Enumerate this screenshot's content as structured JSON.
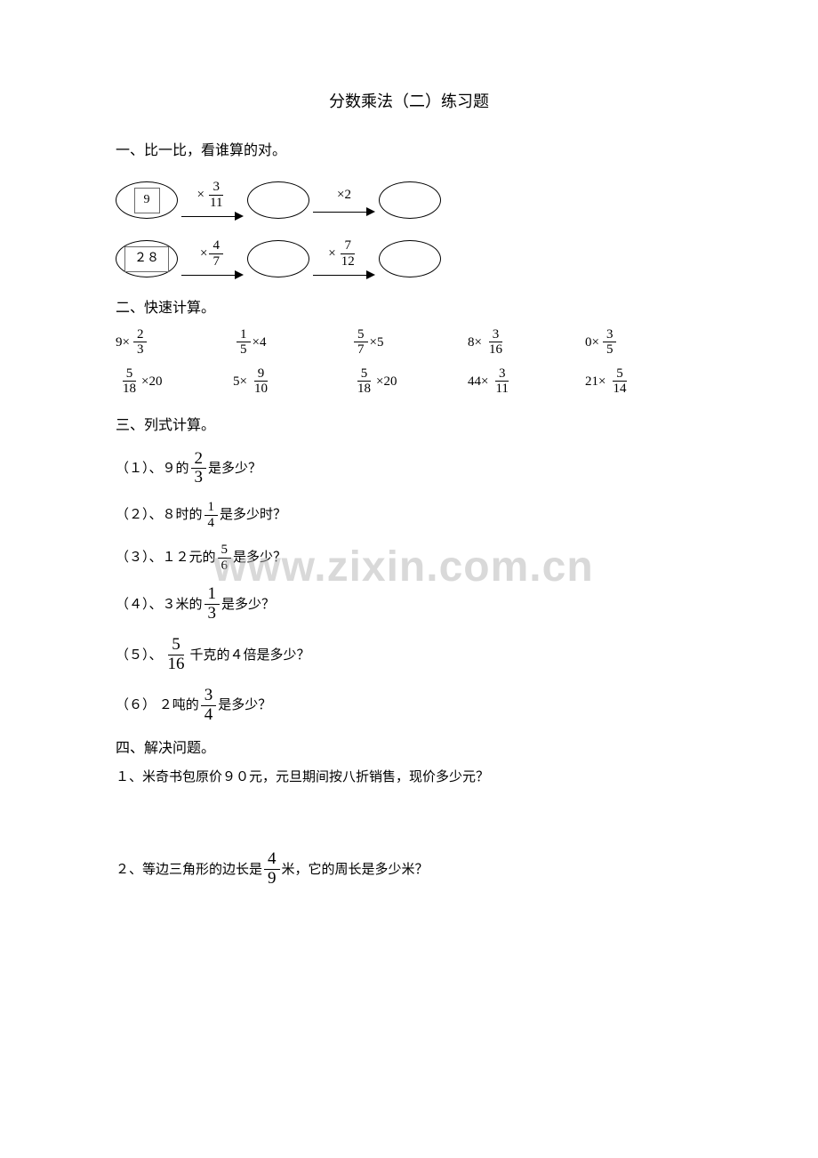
{
  "title": "分数乘法（二）练习题",
  "section1": {
    "header": "一、比一比，看谁算的对。",
    "row1": {
      "start": "9",
      "op1_prefix": "×",
      "op1_num": "3",
      "op1_den": "11",
      "op2": "×2"
    },
    "row2": {
      "start": "２８",
      "op1_prefix": "×",
      "op1_num": "4",
      "op1_den": "7",
      "op2_prefix": "×",
      "op2_num": "7",
      "op2_den": "12"
    }
  },
  "section2": {
    "header": "二、快速计算。",
    "items": [
      {
        "pre": "9×",
        "num": "2",
        "den": "3",
        "post": ""
      },
      {
        "pre": "",
        "num": "1",
        "den": "5",
        "post": "×4"
      },
      {
        "pre": "",
        "num": "5",
        "den": "7",
        "post": "×5"
      },
      {
        "pre": "8×",
        "num": "3",
        "den": "16",
        "post": ""
      },
      {
        "pre": "0×",
        "num": "3",
        "den": "5",
        "post": ""
      },
      {
        "pre": "",
        "num": "5",
        "den": "18",
        "post": "×20"
      },
      {
        "pre": "5×",
        "num": "9",
        "den": "10",
        "post": ""
      },
      {
        "pre": "",
        "num": "5",
        "den": "18",
        "post": "×20"
      },
      {
        "pre": "44×",
        "num": "3",
        "den": "11",
        "post": ""
      },
      {
        "pre": "21×",
        "num": "5",
        "den": "14",
        "post": ""
      }
    ]
  },
  "section3": {
    "header": "三、列式计算。",
    "q1": {
      "pre": "（１）、９的",
      "num": "2",
      "den": "3",
      "post": "是多少？"
    },
    "q2": {
      "pre": "（２）、８时的",
      "num": "1",
      "den": "4",
      "post": "是多少时？"
    },
    "q3": {
      "pre": "（３）、１２元的",
      "num": "5",
      "den": "6",
      "post": "是多少？"
    },
    "q4": {
      "pre": "（４）、３米的",
      "num": "1",
      "den": "3",
      "post": "是多少？"
    },
    "q5": {
      "pre": "（５）、",
      "num": "5",
      "den": "16",
      "post": "千克的４倍是多少？"
    },
    "q6": {
      "pre": "（６） ２吨的",
      "num": "3",
      "den": "4",
      "post": "是多少？"
    }
  },
  "section4": {
    "header": "四、解决问题。",
    "p1": "１、米奇书包原价９０元，元旦期间按八折销售，现价多少元？",
    "p2_pre": "２、等边三角形的边长是",
    "p2_num": "4",
    "p2_den": "9",
    "p2_post": "米，它的周长是多少米？"
  },
  "watermark": "www.zixin.com.cn"
}
